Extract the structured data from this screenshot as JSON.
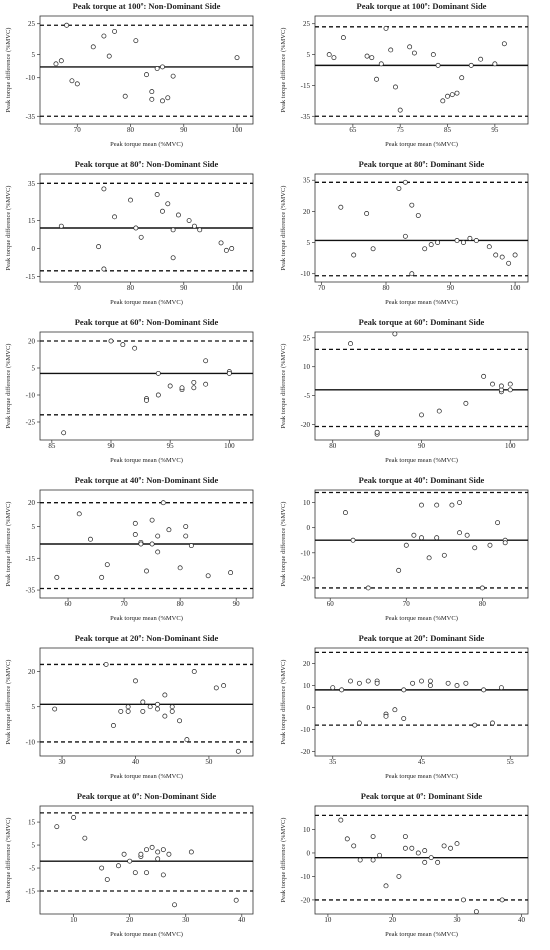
{
  "chart_data": [
    {
      "type": "scatter",
      "title": "Peak torque at 100º: Non-Dominant Side",
      "xlabel": "Peak torque mean (%MVC)",
      "ylabel": "Peak torque difference (%MVC)",
      "xlim": [
        63,
        103
      ],
      "ylim": [
        -40,
        30
      ],
      "xticks": [
        70,
        80,
        90,
        100
      ],
      "yticks": [
        -35,
        -10,
        5,
        25
      ],
      "mean_line": -3,
      "loa_upper": 24,
      "loa_lower": -35,
      "points": [
        [
          66,
          -1
        ],
        [
          67,
          1
        ],
        [
          68,
          24
        ],
        [
          69,
          -12
        ],
        [
          70,
          -14
        ],
        [
          73,
          10
        ],
        [
          75,
          17
        ],
        [
          76,
          4
        ],
        [
          77,
          20
        ],
        [
          79,
          -22
        ],
        [
          81,
          14
        ],
        [
          83,
          -8
        ],
        [
          84,
          -19
        ],
        [
          84,
          -24
        ],
        [
          85,
          -4
        ],
        [
          86,
          -3
        ],
        [
          86,
          -25
        ],
        [
          87,
          -23
        ],
        [
          88,
          -9
        ],
        [
          100,
          3
        ]
      ]
    },
    {
      "type": "scatter",
      "title": "Peak torque at 100º: Dominant Side",
      "xlabel": "Peak torque mean (%MVC)",
      "ylabel": "Peak torque difference (%MVC)",
      "xlim": [
        57,
        102
      ],
      "ylim": [
        -40,
        30
      ],
      "xticks": [
        65,
        75,
        85,
        95
      ],
      "yticks": [
        -35,
        -15,
        5,
        25
      ],
      "mean_line": -2,
      "loa_upper": 23,
      "loa_lower": -35,
      "points": [
        [
          63,
          16
        ],
        [
          68,
          4
        ],
        [
          69,
          3
        ],
        [
          70,
          -11
        ],
        [
          71,
          -1
        ],
        [
          72,
          22
        ],
        [
          73,
          8
        ],
        [
          74,
          -16
        ],
        [
          75,
          -31
        ],
        [
          77,
          10
        ],
        [
          78,
          6
        ],
        [
          82,
          5
        ],
        [
          83,
          -2
        ],
        [
          84,
          -25
        ],
        [
          85,
          -22
        ],
        [
          86,
          -21
        ],
        [
          87,
          -20
        ],
        [
          88,
          -10
        ],
        [
          90,
          -2
        ],
        [
          92,
          2
        ],
        [
          95,
          -1
        ],
        [
          97,
          12
        ],
        [
          60,
          5
        ],
        [
          61,
          3
        ]
      ]
    },
    {
      "type": "scatter",
      "title": "Peak torque at 80º: Non-Dominant Side",
      "xlabel": "Peak torque mean (%MVC)",
      "ylabel": "Peak torque difference (%MVC)",
      "xlim": [
        63,
        103
      ],
      "ylim": [
        -18,
        40
      ],
      "xticks": [
        70,
        80,
        90,
        100
      ],
      "yticks": [
        -15,
        0,
        15,
        35
      ],
      "mean_line": 11,
      "loa_upper": 35,
      "loa_lower": -12,
      "points": [
        [
          67,
          12
        ],
        [
          74,
          1
        ],
        [
          75,
          32
        ],
        [
          77,
          17
        ],
        [
          80,
          26
        ],
        [
          81,
          11
        ],
        [
          82,
          6
        ],
        [
          86,
          20
        ],
        [
          87,
          24
        ],
        [
          88,
          -5
        ],
        [
          88,
          10
        ],
        [
          89,
          18
        ],
        [
          91,
          15
        ],
        [
          92,
          12
        ],
        [
          93,
          10
        ],
        [
          97,
          3
        ],
        [
          98,
          -1
        ],
        [
          99,
          0
        ],
        [
          75,
          -11
        ],
        [
          85,
          29
        ]
      ]
    },
    {
      "type": "scatter",
      "title": "Peak torque at 80º: Dominant Side",
      "xlabel": "Peak torque mean (%MVC)",
      "ylabel": "Peak torque difference (%MVC)",
      "xlim": [
        69,
        102
      ],
      "ylim": [
        -14,
        38
      ],
      "xticks": [
        70,
        80,
        90,
        100
      ],
      "yticks": [
        -10,
        5,
        20,
        35
      ],
      "mean_line": 6,
      "loa_upper": 34,
      "loa_lower": -11,
      "points": [
        [
          73,
          22
        ],
        [
          75,
          -1
        ],
        [
          77,
          19
        ],
        [
          78,
          2
        ],
        [
          82,
          31
        ],
        [
          83,
          34
        ],
        [
          83,
          8
        ],
        [
          84,
          23
        ],
        [
          85,
          18
        ],
        [
          86,
          2
        ],
        [
          87,
          4
        ],
        [
          88,
          5
        ],
        [
          91,
          6
        ],
        [
          92,
          5
        ],
        [
          93,
          7
        ],
        [
          94,
          6
        ],
        [
          96,
          3
        ],
        [
          97,
          -1
        ],
        [
          98,
          -2
        ],
        [
          99,
          -5
        ],
        [
          100,
          -1
        ],
        [
          84,
          -10
        ]
      ]
    },
    {
      "type": "scatter",
      "title": "Peak torque at 60º: Non-Dominant Side",
      "xlabel": "Peak torque mean (%MVC)",
      "ylabel": "Peak torque difference (%MVC)",
      "xlim": [
        84,
        102
      ],
      "ylim": [
        -35,
        25
      ],
      "xticks": [
        85,
        90,
        95,
        100
      ],
      "yticks": [
        -25,
        -10,
        5,
        20
      ],
      "mean_line": 2,
      "loa_upper": 20,
      "loa_lower": -21,
      "points": [
        [
          86,
          -31
        ],
        [
          90,
          20
        ],
        [
          91,
          18
        ],
        [
          92,
          16
        ],
        [
          93,
          -12
        ],
        [
          94,
          -10
        ],
        [
          94,
          2
        ],
        [
          95,
          -5
        ],
        [
          96,
          -7
        ],
        [
          96,
          -6
        ],
        [
          97,
          -3
        ],
        [
          97,
          -6
        ],
        [
          98,
          9
        ],
        [
          98,
          -4
        ],
        [
          100,
          3
        ],
        [
          100,
          2
        ],
        [
          93,
          -13
        ]
      ]
    },
    {
      "type": "scatter",
      "title": "Peak torque at 60º: Dominant Side",
      "xlabel": "Peak torque mean (%MVC)",
      "ylabel": "Peak torque difference (%MVC)",
      "xlim": [
        78,
        102
      ],
      "ylim": [
        -28,
        28
      ],
      "xticks": [
        80,
        90,
        100
      ],
      "yticks": [
        -20,
        -5,
        10,
        25
      ],
      "mean_line": -2,
      "loa_upper": 19,
      "loa_lower": -21,
      "points": [
        [
          82,
          22
        ],
        [
          85,
          -25
        ],
        [
          87,
          27
        ],
        [
          90,
          -15
        ],
        [
          92,
          -13
        ],
        [
          95,
          -9
        ],
        [
          97,
          5
        ],
        [
          98,
          1
        ],
        [
          99,
          -3
        ],
        [
          99,
          -2
        ],
        [
          100,
          -2
        ],
        [
          100,
          1
        ],
        [
          99,
          0
        ],
        [
          85,
          -24
        ]
      ]
    },
    {
      "type": "scatter",
      "title": "Peak torque at 40º: Non-Dominant Side",
      "xlabel": "Peak torque mean (%MVC)",
      "ylabel": "Peak torque difference (%MVC)",
      "xlim": [
        55,
        93
      ],
      "ylim": [
        -40,
        28
      ],
      "xticks": [
        60,
        70,
        80,
        90
      ],
      "yticks": [
        -35,
        -15,
        5,
        20
      ],
      "mean_line": -6,
      "loa_upper": 20,
      "loa_lower": -34,
      "points": [
        [
          58,
          -27
        ],
        [
          62,
          13
        ],
        [
          64,
          -3
        ],
        [
          66,
          -27
        ],
        [
          72,
          0
        ],
        [
          72,
          7
        ],
        [
          73,
          -5
        ],
        [
          73,
          -6
        ],
        [
          74,
          -23
        ],
        [
          75,
          -6
        ],
        [
          75,
          9
        ],
        [
          76,
          -1
        ],
        [
          76,
          -11
        ],
        [
          77,
          20
        ],
        [
          78,
          3
        ],
        [
          80,
          -21
        ],
        [
          81,
          5
        ],
        [
          81,
          -1
        ],
        [
          82,
          -7
        ],
        [
          85,
          -26
        ],
        [
          89,
          -24
        ],
        [
          67,
          -19
        ]
      ]
    },
    {
      "type": "scatter",
      "title": "Peak torque at 40º: Dominant Side",
      "xlabel": "Peak torque mean (%MVC)",
      "ylabel": "Peak torque difference (%MVC)",
      "xlim": [
        58,
        86
      ],
      "ylim": [
        -28,
        15
      ],
      "xticks": [
        60,
        70,
        80
      ],
      "yticks": [
        -20,
        -10,
        0,
        10
      ],
      "mean_line": -5,
      "loa_upper": 14,
      "loa_lower": -24,
      "points": [
        [
          62,
          6
        ],
        [
          63,
          -5
        ],
        [
          65,
          -24
        ],
        [
          69,
          -17
        ],
        [
          70,
          -7
        ],
        [
          71,
          -3
        ],
        [
          72,
          -4
        ],
        [
          73,
          -12
        ],
        [
          74,
          9
        ],
        [
          75,
          -11
        ],
        [
          76,
          9
        ],
        [
          77,
          10
        ],
        [
          77,
          -2
        ],
        [
          78,
          -3
        ],
        [
          79,
          -8
        ],
        [
          80,
          -24
        ],
        [
          81,
          -7
        ],
        [
          82,
          2
        ],
        [
          83,
          -5
        ],
        [
          83,
          -6
        ],
        [
          72,
          9
        ],
        [
          74,
          -4
        ]
      ]
    },
    {
      "type": "scatter",
      "title": "Peak torque at 20º: Non-Dominant Side",
      "xlabel": "Peak torque mean (%MVC)",
      "ylabel": "Peak torque difference (%MVC)",
      "xlim": [
        27,
        56
      ],
      "ylim": [
        -16,
        30
      ],
      "xticks": [
        30,
        40,
        50
      ],
      "yticks": [
        -10,
        5,
        20
      ],
      "mean_line": 6,
      "loa_upper": 23,
      "loa_lower": -10,
      "points": [
        [
          29,
          4
        ],
        [
          36,
          23
        ],
        [
          37,
          -3
        ],
        [
          38,
          3
        ],
        [
          39,
          5
        ],
        [
          40,
          16
        ],
        [
          41,
          7
        ],
        [
          42,
          5
        ],
        [
          43,
          6
        ],
        [
          43,
          4
        ],
        [
          44,
          1
        ],
        [
          44,
          10
        ],
        [
          45,
          3
        ],
        [
          45,
          5
        ],
        [
          46,
          -1
        ],
        [
          47,
          -9
        ],
        [
          48,
          20
        ],
        [
          51,
          13
        ],
        [
          52,
          14
        ],
        [
          54,
          -14
        ],
        [
          41,
          3
        ],
        [
          39,
          3
        ]
      ]
    },
    {
      "type": "scatter",
      "title": "Peak torque at 20º: Dominant Side",
      "xlabel": "Peak torque mean (%MVC)",
      "ylabel": "Peak torque difference (%MVC)",
      "xlim": [
        33,
        57
      ],
      "ylim": [
        -22,
        27
      ],
      "xticks": [
        35,
        45,
        55
      ],
      "yticks": [
        -20,
        -10,
        0,
        10,
        20
      ],
      "mean_line": 8,
      "loa_upper": 25,
      "loa_lower": -8,
      "points": [
        [
          35,
          9
        ],
        [
          36,
          8
        ],
        [
          37,
          12
        ],
        [
          38,
          11
        ],
        [
          38,
          -7
        ],
        [
          39,
          12
        ],
        [
          40,
          12
        ],
        [
          40,
          11
        ],
        [
          41,
          -3
        ],
        [
          41,
          -4
        ],
        [
          42,
          -1
        ],
        [
          43,
          -5
        ],
        [
          43,
          8
        ],
        [
          44,
          11
        ],
        [
          45,
          12
        ],
        [
          46,
          10
        ],
        [
          46,
          12
        ],
        [
          48,
          11
        ],
        [
          49,
          10
        ],
        [
          50,
          11
        ],
        [
          51,
          -8
        ],
        [
          52,
          8
        ],
        [
          53,
          -7
        ],
        [
          54,
          9
        ]
      ]
    },
    {
      "type": "scatter",
      "title": "Peak torque at 0º: Non-Dominant Side",
      "xlabel": "Peak torque mean (%MVC)",
      "ylabel": "Peak torque difference (%MVC)",
      "xlim": [
        4,
        42
      ],
      "ylim": [
        -25,
        22
      ],
      "xticks": [
        10,
        20,
        30,
        40
      ],
      "yticks": [
        -15,
        -5,
        5,
        15
      ],
      "mean_line": -2,
      "loa_upper": 19,
      "loa_lower": -15,
      "points": [
        [
          7,
          13
        ],
        [
          10,
          17
        ],
        [
          12,
          8
        ],
        [
          15,
          -5
        ],
        [
          16,
          -10
        ],
        [
          18,
          -4
        ],
        [
          19,
          1
        ],
        [
          20,
          -2
        ],
        [
          21,
          -7
        ],
        [
          22,
          0
        ],
        [
          22,
          1
        ],
        [
          23,
          3
        ],
        [
          23,
          -7
        ],
        [
          24,
          4
        ],
        [
          25,
          -1
        ],
        [
          25,
          2
        ],
        [
          26,
          3
        ],
        [
          27,
          1
        ],
        [
          28,
          -21
        ],
        [
          31,
          2
        ],
        [
          39,
          -19
        ],
        [
          26,
          -8
        ]
      ]
    },
    {
      "type": "scatter",
      "title": "Peak torque at 0º: Dominant Side",
      "xlabel": "Peak torque mean (%MVC)",
      "ylabel": "Peak torque difference (%MVC)",
      "xlim": [
        8,
        41
      ],
      "ylim": [
        -26,
        20
      ],
      "xticks": [
        10,
        20,
        30,
        40
      ],
      "yticks": [
        -20,
        -10,
        0,
        10
      ],
      "mean_line": -2,
      "loa_upper": 16,
      "loa_lower": -20,
      "points": [
        [
          12,
          14
        ],
        [
          13,
          6
        ],
        [
          14,
          3
        ],
        [
          15,
          -3
        ],
        [
          17,
          -3
        ],
        [
          17,
          7
        ],
        [
          18,
          -1
        ],
        [
          19,
          -14
        ],
        [
          21,
          -10
        ],
        [
          22,
          2
        ],
        [
          22,
          7
        ],
        [
          23,
          2
        ],
        [
          24,
          0
        ],
        [
          25,
          1
        ],
        [
          25,
          -4
        ],
        [
          26,
          -2
        ],
        [
          27,
          -4
        ],
        [
          28,
          3
        ],
        [
          29,
          2
        ],
        [
          30,
          4
        ],
        [
          31,
          -20
        ],
        [
          33,
          -25
        ],
        [
          37,
          -20
        ]
      ]
    }
  ]
}
